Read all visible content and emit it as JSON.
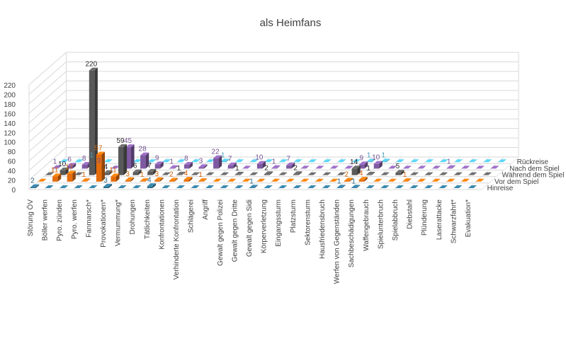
{
  "chart_data": {
    "type": "bar",
    "variant": "3d-column",
    "title": "als Heimfans",
    "xlabel": "",
    "ylabel": "",
    "ylim": [
      0,
      220
    ],
    "yticks": [
      "0",
      "20",
      "40",
      "60",
      "80",
      "100",
      "120",
      "140",
      "160",
      "180",
      "200",
      "220"
    ],
    "grid": true,
    "legend_position": "right (series labels along depth axis)",
    "categories": [
      "Störung ÖV",
      "Böller werfen",
      "Pyro. zünden",
      "Pyro. werfen",
      "Fanmarsch*",
      "Provokationen*",
      "Vermummung*",
      "Drohungen",
      "Tätlichkeiten",
      "Konfrontationen",
      "Verhinderte Konfrontation",
      "Schlägerei",
      "Angriff",
      "Gewalt gegen Polizei",
      "Gewalt gegen Dritte",
      "Gewalt gegen Sidi",
      "Körperverletzung",
      "Eingangssturm",
      "Platzsturm",
      "Sektorensturm",
      "Hausfriedensbruch",
      "Werfen von Gegenständen",
      "Sachbeschädigungen",
      "Waffengebrauch",
      "Spielunterbruch",
      "Spielabbruch",
      "Diebstahl",
      "Plünderung",
      "Laserattacke",
      "Schwarzfahrt*",
      "Evakuation*"
    ],
    "series": [
      {
        "name": "Hinreise",
        "color": "#2e6e8e",
        "values": [
          2,
          0,
          0,
          0,
          0,
          3,
          0,
          0,
          4,
          0,
          0,
          0,
          0,
          0,
          0,
          1,
          0,
          0,
          0,
          0,
          0,
          1,
          1,
          0,
          0,
          0,
          0,
          0,
          0,
          0,
          0
        ]
      },
      {
        "name": "Vor dem Spiel",
        "color": "#e46c0a",
        "values": [
          0,
          11,
          17,
          1,
          57,
          11,
          3,
          1,
          3,
          2,
          4,
          1,
          0,
          0,
          0,
          0,
          0,
          0,
          0,
          0,
          0,
          2,
          4,
          0,
          0,
          1,
          0,
          0,
          0,
          0,
          0
        ]
      },
      {
        "name": "Während dem Spiel",
        "color": "#595959",
        "values": [
          0,
          10,
          0,
          220,
          4,
          59,
          6,
          7,
          0,
          1,
          0,
          0,
          0,
          1,
          0,
          2,
          0,
          2,
          0,
          0,
          0,
          14,
          1,
          0,
          5,
          0,
          0,
          0,
          0,
          0,
          0
        ]
      },
      {
        "name": "Nach dem Spiel",
        "color": "#7f5aa2",
        "values": [
          1,
          6,
          8,
          3,
          0,
          45,
          28,
          9,
          1,
          8,
          3,
          22,
          7,
          0,
          10,
          1,
          7,
          0,
          0,
          0,
          0,
          9,
          10,
          0,
          0,
          0,
          0,
          1,
          0,
          0,
          0
        ]
      },
      {
        "name": "Rückreise",
        "color": "#4aacc6",
        "values": [
          0,
          0,
          1,
          0,
          0,
          0,
          0,
          0,
          0,
          0,
          0,
          1,
          0,
          0,
          0,
          0,
          0,
          0,
          0,
          0,
          0,
          1,
          1,
          0,
          0,
          0,
          0,
          0,
          0,
          0,
          0
        ]
      }
    ]
  }
}
